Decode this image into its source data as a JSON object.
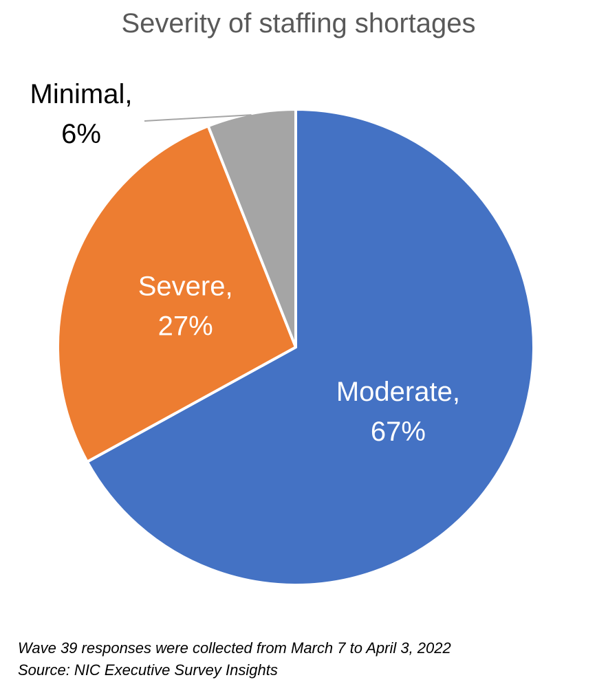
{
  "chart_data": {
    "type": "pie",
    "title": "Severity of staffing shortages",
    "slices": [
      {
        "name": "Moderate",
        "value": 67,
        "label": "Moderate,",
        "value_label": "67%",
        "color": "#4472C4",
        "label_color": "#FFFFFF"
      },
      {
        "name": "Severe",
        "value": 27,
        "label": "Severe,",
        "value_label": "27%",
        "color": "#ED7D31",
        "label_color": "#FFFFFF"
      },
      {
        "name": "Minimal",
        "value": 6,
        "label": "Minimal,",
        "value_label": "6%",
        "color": "#A5A5A5",
        "label_color": "#000000"
      }
    ],
    "start": "12 o'clock",
    "direction": "clockwise"
  },
  "notes": {
    "wave": "Wave 39 responses were collected from March 7 to April 3, 2022",
    "source": "Source: NIC Executive Survey Insights"
  }
}
